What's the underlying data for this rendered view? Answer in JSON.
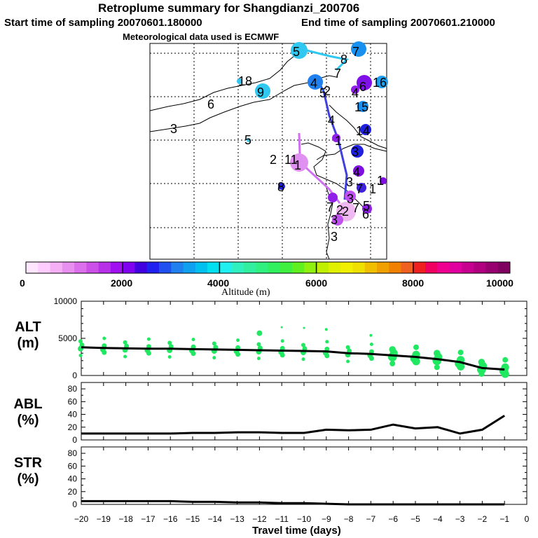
{
  "title": "Retroplume summary for Shangdianzi_200706",
  "start_label": "Start time of sampling 20070601.180000",
  "end_label": "End time of sampling 20070601.210000",
  "met_label": "Meteorological data used is ECMWF",
  "colorbar": {
    "label": "Altitude (m)",
    "ticks": [
      "0",
      "2000",
      "4000",
      "6000",
      "8000",
      "10000"
    ],
    "colors": [
      "#ffe6ff",
      "#ffccff",
      "#f5b0f5",
      "#e890f0",
      "#dc70ec",
      "#cc50e8",
      "#b830e8",
      "#a010f0",
      "#8000f0",
      "#4000e0",
      "#2020f0",
      "#2050f0",
      "#2080f0",
      "#10a0f0",
      "#00c0f0",
      "#00e0f0",
      "#20f0f0",
      "#30f0c0",
      "#30f0a0",
      "#30f080",
      "#30f060",
      "#40f040",
      "#60f020",
      "#90f010",
      "#c0f000",
      "#e0f000",
      "#f0f000",
      "#f0e000",
      "#f0c000",
      "#f0a000",
      "#f08000",
      "#f06020",
      "#f02020",
      "#f00060",
      "#f00090",
      "#e000a0",
      "#c80090",
      "#b00080",
      "#980070",
      "#800060"
    ]
  },
  "map": {
    "labels": [
      "1",
      "2",
      "3",
      "4",
      "5",
      "6",
      "7",
      "8",
      "9",
      "11",
      "14",
      "15",
      "16",
      "18"
    ]
  },
  "chart_data": [
    {
      "type": "line",
      "panel": "ALT",
      "ylabel_line1": "ALT",
      "ylabel_line2": "(m)",
      "x": [
        -20,
        -19,
        -18,
        -17,
        -16,
        -15,
        -14,
        -13,
        -12,
        -11,
        -10,
        -9,
        -8,
        -7,
        -6,
        -5,
        -4,
        -3,
        -2,
        -1
      ],
      "ytick_labels": [
        "10000",
        "5000",
        "0"
      ],
      "ylim": [
        0,
        10000
      ],
      "series": [
        {
          "name": "mean altitude",
          "values": [
            3800,
            3700,
            3650,
            3600,
            3600,
            3550,
            3500,
            3450,
            3400,
            3350,
            3300,
            3250,
            3000,
            2900,
            2700,
            2500,
            2200,
            1800,
            1000,
            800
          ]
        }
      ]
    },
    {
      "type": "line",
      "panel": "ABL",
      "ylabel_line1": "ABL",
      "ylabel_line2": "(%)",
      "x": [
        -20,
        -19,
        -18,
        -17,
        -16,
        -15,
        -14,
        -13,
        -12,
        -11,
        -10,
        -9,
        -8,
        -7,
        -6,
        -5,
        -4,
        -3,
        -2,
        -1
      ],
      "ytick_labels": [
        "80",
        "60",
        "40",
        "20",
        "0"
      ],
      "ylim": [
        0,
        90
      ],
      "series": [
        {
          "name": "ABL fraction",
          "values": [
            10,
            10,
            10,
            10,
            10,
            11,
            11,
            12,
            12,
            11,
            11,
            16,
            15,
            16,
            24,
            18,
            20,
            10,
            16,
            38
          ]
        }
      ]
    },
    {
      "type": "line",
      "panel": "STR",
      "ylabel_line1": "STR",
      "ylabel_line2": "(%)",
      "x": [
        -20,
        -19,
        -18,
        -17,
        -16,
        -15,
        -14,
        -13,
        -12,
        -11,
        -10,
        -9,
        -8,
        -7,
        -6,
        -5,
        -4,
        -3,
        -2,
        -1
      ],
      "ytick_labels": [
        "80",
        "60",
        "40",
        "20",
        "0"
      ],
      "ylim": [
        0,
        90
      ],
      "series": [
        {
          "name": "stratospheric fraction",
          "values": [
            5,
            5,
            5,
            5,
            5,
            4,
            4,
            3,
            3,
            2,
            2,
            1,
            0,
            0,
            0,
            0,
            0,
            0,
            0,
            0
          ]
        }
      ]
    }
  ],
  "xaxis": {
    "label": "Travel time (days)",
    "ticks": [
      "−20",
      "−19",
      "−18",
      "−17",
      "−16",
      "−15",
      "−14",
      "−13",
      "−12",
      "−11",
      "−10",
      "−9",
      "−8",
      "−7",
      "−6",
      "−5",
      "−4",
      "−3",
      "−2",
      "−1",
      "0"
    ]
  }
}
